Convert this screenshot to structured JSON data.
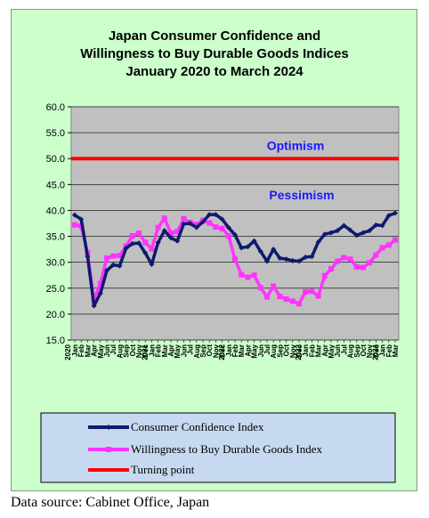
{
  "source_note": "Data source: Cabinet Office, Japan",
  "colors": {
    "frame_bg": "#ccffcc",
    "plot_bg": "#c0c0c0",
    "legend_bg": "#c6d9f1",
    "confidence": "#0d1a6e",
    "willingness": "#ff33ff",
    "turning_point": "#ff0000",
    "annotation": "#1a1aff"
  },
  "chart_data": {
    "type": "line",
    "title_lines": [
      "Japan Consumer Confidence and",
      "Willingness to Buy Durable Goods Indices",
      "January 2020 to March 2024"
    ],
    "ylim": [
      15,
      60
    ],
    "yticks": [
      "15.0",
      "20.0",
      "25.0",
      "30.0",
      "35.0",
      "40.0",
      "45.0",
      "50.0",
      "55.0",
      "60.0"
    ],
    "grid": "horizontal",
    "legend_position": "bottom",
    "months": [
      "Jan",
      "Feb",
      "Mar",
      "Apr",
      "May",
      "Jun",
      "Jul",
      "Aug",
      "Sep",
      "Oct",
      "Nov",
      "Dec"
    ],
    "year_labels": [
      {
        "index": 0,
        "text": "2020"
      },
      {
        "index": 12,
        "text": "2021"
      },
      {
        "index": 24,
        "text": "2022"
      },
      {
        "index": 36,
        "text": "2023"
      },
      {
        "index": 48,
        "text": "2024"
      }
    ],
    "annotations": [
      {
        "text": "Optimism",
        "y": 52.5
      },
      {
        "text": "Pessimism",
        "y": 43.0
      }
    ],
    "series": [
      {
        "name": "Consumer Confidence Index",
        "values": [
          39.1,
          38.3,
          31.1,
          21.6,
          24.0,
          28.4,
          29.5,
          29.3,
          32.7,
          33.6,
          33.7,
          31.8,
          29.6,
          33.8,
          36.1,
          34.7,
          34.1,
          37.4,
          37.5,
          36.7,
          37.8,
          39.2,
          39.2,
          38.3,
          36.7,
          35.3,
          32.8,
          33.0,
          34.1,
          32.1,
          30.2,
          32.5,
          30.8,
          30.6,
          30.3,
          30.2,
          31.0,
          31.1,
          33.9,
          35.4,
          35.7,
          36.1,
          37.1,
          36.2,
          35.2,
          35.7,
          36.1,
          37.2,
          37.1,
          39.0,
          39.5
        ],
        "color": "#0d1a6e"
      },
      {
        "name": "Willingness to Buy Durable Goods Index",
        "values": [
          37.2,
          37.0,
          31.8,
          22.8,
          25.9,
          30.8,
          31.2,
          31.3,
          33.1,
          35.1,
          35.6,
          33.8,
          32.6,
          36.7,
          38.5,
          35.6,
          35.9,
          38.4,
          37.7,
          37.3,
          38.1,
          37.6,
          36.8,
          36.5,
          35.1,
          30.6,
          27.6,
          27.1,
          27.5,
          25.1,
          23.3,
          25.4,
          23.4,
          22.9,
          22.5,
          22.0,
          24.3,
          24.4,
          23.5,
          27.4,
          28.7,
          30.2,
          30.9,
          30.6,
          29.1,
          29.0,
          29.9,
          31.4,
          32.8,
          33.3,
          34.3
        ],
        "color": "#ff33ff"
      },
      {
        "name": "Turning point",
        "values": [
          50.0,
          50.0
        ],
        "color": "#ff0000"
      }
    ]
  }
}
